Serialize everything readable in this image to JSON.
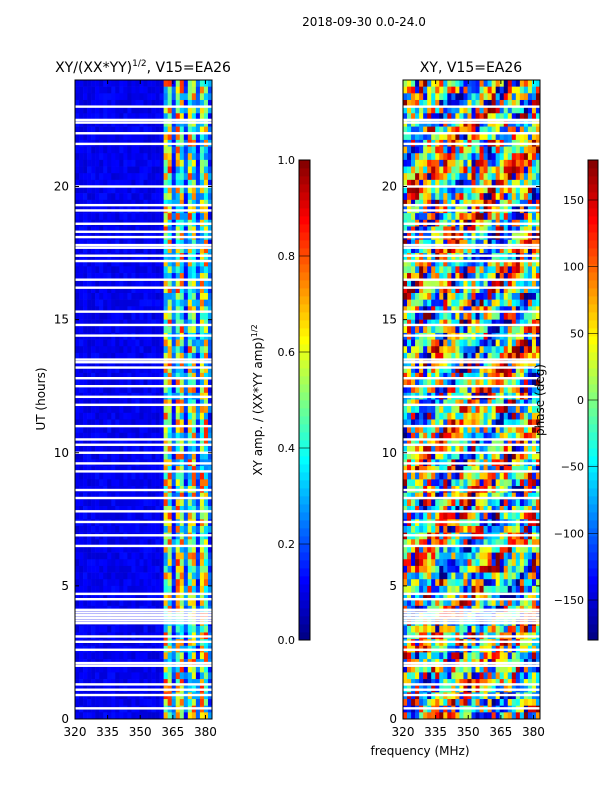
{
  "figure": {
    "suptitle": "2018-09-30 0.0-24.0",
    "shared_xlabel": "frequency (MHz)"
  },
  "colormap": [
    "#00007f",
    "#0000ff",
    "#007fff",
    "#00ffff",
    "#7fff7f",
    "#ffff00",
    "#ff7f00",
    "#ff0000",
    "#7f0000"
  ],
  "chart_data": [
    {
      "type": "heatmap",
      "title_main": "XY/(XX*YY)",
      "title_exp": "1/2",
      "title_tail": ", V15=EA26",
      "xlabel": "",
      "ylabel": "UT (hours)",
      "xlim": [
        320,
        383
      ],
      "ylim": [
        0,
        24
      ],
      "xticks": [
        320,
        335,
        350,
        365,
        380
      ],
      "yticks": [
        0,
        5,
        10,
        15,
        20
      ],
      "description_bands": {
        "low_amplitude_region_mhz": [
          320,
          361
        ],
        "high_amplitude_region_mhz": [
          361,
          383
        ]
      },
      "colorbar": {
        "label_main": "XY amp. / (XX*YY amp)",
        "label_exp": "1/2",
        "vmin": 0.0,
        "vmax": 1.0,
        "ticks": [
          "0.0",
          "0.2",
          "0.4",
          "0.6",
          "0.8",
          "1.0"
        ],
        "tick_values": [
          0.0,
          0.2,
          0.4,
          0.6,
          0.8,
          1.0
        ]
      },
      "flagged_rows_ut": [
        0.4,
        0.9,
        1.1,
        1.3,
        2.0,
        2.1,
        2.6,
        2.9,
        3.1,
        3.6,
        3.7,
        3.8,
        3.9,
        4.0,
        4.1,
        4.5,
        4.7,
        6.5,
        6.9,
        7.4,
        7.8,
        8.3,
        8.6,
        9.3,
        9.6,
        10.0,
        10.3,
        10.5,
        11.0,
        11.8,
        12.1,
        12.5,
        12.8,
        13.2,
        13.4,
        13.5,
        14.4,
        14.8,
        15.3,
        16.2,
        16.5,
        17.2,
        17.4,
        17.7,
        17.8,
        18.1,
        18.3,
        18.6,
        19.1,
        19.3,
        20.0,
        21.6,
        22.0,
        22.4,
        22.5,
        23.0
      ]
    },
    {
      "type": "heatmap",
      "title_main": "XY, V15=EA26",
      "title_exp": "",
      "title_tail": "",
      "xlabel": "frequency (MHz)",
      "ylabel": "",
      "xlim": [
        320,
        383
      ],
      "ylim": [
        0,
        24
      ],
      "xticks": [
        320,
        335,
        350,
        365,
        380
      ],
      "yticks": [
        0,
        5,
        10,
        15,
        20
      ],
      "colorbar": {
        "label_main": "phase (deg)",
        "label_exp": "",
        "vmin": -180,
        "vmax": 180,
        "ticks": [
          "−150",
          "−100",
          "−50",
          "0",
          "50",
          "100",
          "150"
        ],
        "tick_values": [
          -150,
          -100,
          -50,
          0,
          50,
          100,
          150
        ]
      },
      "flagged_rows_ut": [
        0.4,
        0.9,
        1.1,
        1.3,
        2.0,
        2.1,
        2.6,
        2.9,
        3.1,
        3.6,
        3.7,
        3.8,
        3.9,
        4.0,
        4.1,
        4.5,
        4.7,
        6.5,
        6.9,
        7.4,
        7.8,
        8.3,
        8.6,
        9.3,
        9.6,
        10.0,
        10.3,
        10.5,
        11.0,
        11.8,
        12.1,
        12.5,
        12.8,
        13.2,
        13.4,
        13.5,
        14.4,
        14.8,
        15.3,
        16.2,
        16.5,
        17.2,
        17.4,
        17.7,
        17.8,
        18.1,
        18.3,
        18.6,
        19.1,
        19.3,
        20.0,
        21.6,
        22.0,
        22.4,
        22.5,
        23.0
      ]
    }
  ]
}
